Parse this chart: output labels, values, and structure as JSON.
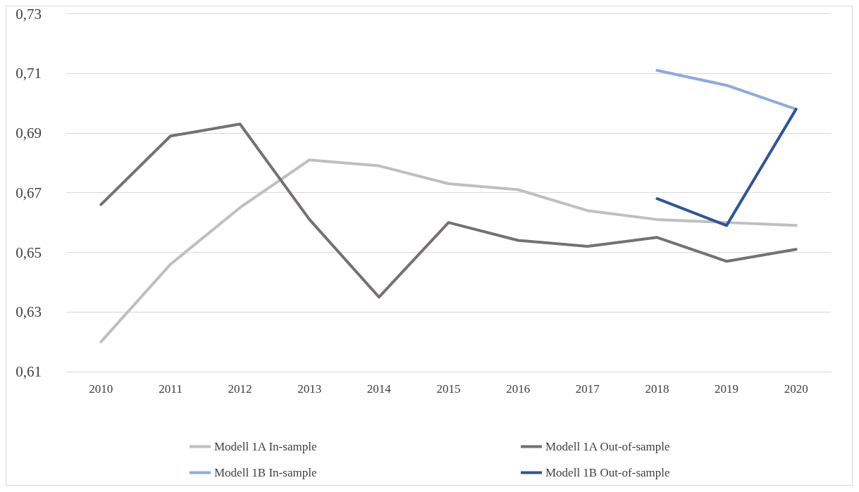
{
  "chart_data": {
    "type": "line",
    "categories": [
      "2010",
      "2011",
      "2012",
      "2013",
      "2014",
      "2015",
      "2016",
      "2017",
      "2018",
      "2019",
      "2020"
    ],
    "series": [
      {
        "name": "Modell 1A In-sample",
        "color": "#bfbfbf",
        "values": [
          0.62,
          0.646,
          0.665,
          0.681,
          0.679,
          0.673,
          0.671,
          0.664,
          0.661,
          0.66,
          0.659
        ]
      },
      {
        "name": "Modell 1A Out-of-sample",
        "color": "#767171",
        "values": [
          0.666,
          0.689,
          0.693,
          0.661,
          0.635,
          0.66,
          0.654,
          0.652,
          0.655,
          0.647,
          0.651
        ]
      },
      {
        "name": "Modell 1B In-sample",
        "color": "#8faadc",
        "values": [
          null,
          null,
          null,
          null,
          null,
          null,
          null,
          null,
          0.711,
          0.706,
          0.698
        ]
      },
      {
        "name": "Modell 1B Out-of-sample",
        "color": "#2f5597",
        "values": [
          null,
          null,
          null,
          null,
          null,
          null,
          null,
          null,
          0.668,
          0.659,
          0.698
        ]
      }
    ],
    "ylim": [
      0.61,
      0.73
    ],
    "yticks": [
      {
        "value": 0.61,
        "label": "0,61"
      },
      {
        "value": 0.63,
        "label": "0,63"
      },
      {
        "value": 0.65,
        "label": "0,65"
      },
      {
        "value": 0.67,
        "label": "0,67"
      },
      {
        "value": 0.69,
        "label": "0,69"
      },
      {
        "value": 0.71,
        "label": "0,71"
      },
      {
        "value": 0.73,
        "label": "0,73"
      }
    ],
    "grid": "y",
    "legend": "bottom",
    "marker": "none",
    "line_style": "solid"
  }
}
